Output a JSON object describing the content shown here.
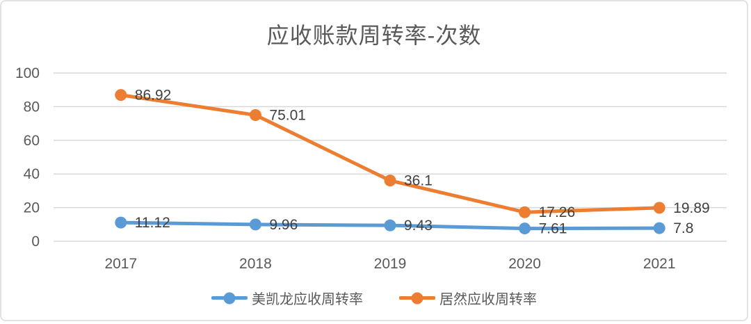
{
  "chart_data": {
    "type": "line",
    "title": "应收账款周转率-次数",
    "categories": [
      "2017",
      "2018",
      "2019",
      "2020",
      "2021"
    ],
    "series": [
      {
        "name": "美凯龙应收周转率",
        "color": "#5b9bd5",
        "values": [
          11.12,
          9.96,
          9.43,
          7.61,
          7.8
        ],
        "labels": [
          "11.12",
          "9.96",
          "9.43",
          "7.61",
          "7.8"
        ]
      },
      {
        "name": "居然应收周转率",
        "color": "#ed7d31",
        "values": [
          86.92,
          75.01,
          36.1,
          17.26,
          19.89
        ],
        "labels": [
          "86.92",
          "75.01",
          "36.1",
          "17.26",
          "19.89"
        ]
      }
    ],
    "ylim": [
      0,
      100
    ],
    "yticks": [
      0,
      20,
      40,
      60,
      80,
      100
    ],
    "grid": true,
    "legend_position": "bottom",
    "colors": {
      "title_text": "#595959",
      "axis_text": "#595959",
      "data_label_text": "#404040",
      "gridline": "#d9d9d9",
      "card_border": "#e2e2e2"
    }
  }
}
